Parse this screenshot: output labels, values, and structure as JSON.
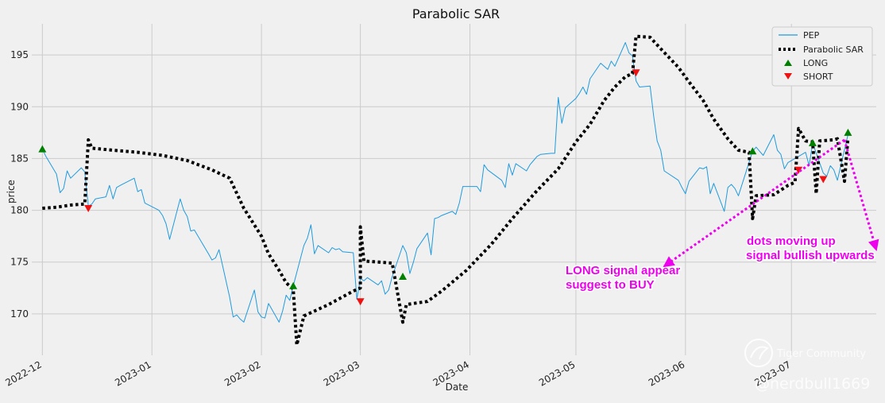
{
  "chart_data": {
    "type": "line",
    "title": "Parabolic SAR",
    "xlabel": "Date",
    "ylabel": "price",
    "ylim": [
      166,
      198
    ],
    "xlim": [
      "2022-11-28",
      "2023-07-25"
    ],
    "yticks": [
      170,
      175,
      180,
      185,
      190,
      195
    ],
    "xticks": [
      "2022-12-01",
      "2023-01-01",
      "2023-02-01",
      "2023-03-01",
      "2023-04-01",
      "2023-05-01",
      "2023-06-01",
      "2023-07-01"
    ],
    "xtick_labels": [
      "2022-12",
      "2023-01",
      "2023-02",
      "2023-03",
      "2023-04",
      "2023-05",
      "2023-06",
      "2023-07"
    ],
    "grid": true,
    "legend_position": "top-right",
    "series": [
      {
        "name": "PEP",
        "kind": "line",
        "color": "#1f9bde",
        "points": [
          [
            "2022-12-01",
            185.9
          ],
          [
            "2022-12-02",
            185.2
          ],
          [
            "2022-12-05",
            183.5
          ],
          [
            "2022-12-06",
            181.7
          ],
          [
            "2022-12-07",
            182.1
          ],
          [
            "2022-12-08",
            183.8
          ],
          [
            "2022-12-09",
            183.1
          ],
          [
            "2022-12-12",
            184.1
          ],
          [
            "2022-12-13",
            183.7
          ],
          [
            "2022-12-14",
            180.4
          ],
          [
            "2022-12-15",
            180.6
          ],
          [
            "2022-12-16",
            181.1
          ],
          [
            "2022-12-19",
            181.3
          ],
          [
            "2022-12-20",
            182.4
          ],
          [
            "2022-12-21",
            181.1
          ],
          [
            "2022-12-22",
            182.2
          ],
          [
            "2022-12-23",
            182.4
          ],
          [
            "2022-12-27",
            183.1
          ],
          [
            "2022-12-28",
            181.8
          ],
          [
            "2022-12-29",
            182.0
          ],
          [
            "2022-12-30",
            180.7
          ],
          [
            "2023-01-03",
            180.0
          ],
          [
            "2023-01-04",
            179.5
          ],
          [
            "2023-01-05",
            178.7
          ],
          [
            "2023-01-06",
            177.2
          ],
          [
            "2023-01-09",
            181.1
          ],
          [
            "2023-01-10",
            180.0
          ],
          [
            "2023-01-11",
            179.4
          ],
          [
            "2023-01-12",
            178.0
          ],
          [
            "2023-01-13",
            178.1
          ],
          [
            "2023-01-17",
            175.8
          ],
          [
            "2023-01-18",
            175.2
          ],
          [
            "2023-01-19",
            175.4
          ],
          [
            "2023-01-20",
            176.2
          ],
          [
            "2023-01-23",
            171.6
          ],
          [
            "2023-01-24",
            169.7
          ],
          [
            "2023-01-25",
            169.9
          ],
          [
            "2023-01-26",
            169.5
          ],
          [
            "2023-01-27",
            169.2
          ],
          [
            "2023-01-30",
            172.3
          ],
          [
            "2023-01-31",
            170.2
          ],
          [
            "2023-02-01",
            169.7
          ],
          [
            "2023-02-02",
            169.6
          ],
          [
            "2023-02-03",
            171.0
          ],
          [
            "2023-02-06",
            169.2
          ],
          [
            "2023-02-07",
            170.3
          ],
          [
            "2023-02-08",
            171.8
          ],
          [
            "2023-02-09",
            171.3
          ],
          [
            "2023-02-10",
            172.7
          ],
          [
            "2023-02-13",
            176.6
          ],
          [
            "2023-02-14",
            177.3
          ],
          [
            "2023-02-15",
            178.6
          ],
          [
            "2023-02-16",
            175.8
          ],
          [
            "2023-02-17",
            176.6
          ],
          [
            "2023-02-20",
            175.9
          ],
          [
            "2023-02-21",
            176.4
          ],
          [
            "2023-02-22",
            176.2
          ],
          [
            "2023-02-23",
            176.3
          ],
          [
            "2023-02-24",
            176.0
          ],
          [
            "2023-02-27",
            175.9
          ],
          [
            "2023-02-28",
            171.4
          ],
          [
            "2023-03-01",
            173.4
          ],
          [
            "2023-03-02",
            173.2
          ],
          [
            "2023-03-03",
            173.5
          ],
          [
            "2023-03-06",
            172.8
          ],
          [
            "2023-03-07",
            173.2
          ],
          [
            "2023-03-08",
            171.9
          ],
          [
            "2023-03-09",
            172.3
          ],
          [
            "2023-03-10",
            173.6
          ],
          [
            "2023-03-13",
            176.6
          ],
          [
            "2023-03-14",
            175.9
          ],
          [
            "2023-03-15",
            173.9
          ],
          [
            "2023-03-16",
            175.0
          ],
          [
            "2023-03-17",
            176.3
          ],
          [
            "2023-03-20",
            177.8
          ],
          [
            "2023-03-21",
            175.7
          ],
          [
            "2023-03-22",
            179.2
          ],
          [
            "2023-03-23",
            179.3
          ],
          [
            "2023-03-24",
            179.5
          ],
          [
            "2023-03-27",
            179.9
          ],
          [
            "2023-03-28",
            179.6
          ],
          [
            "2023-03-29",
            180.7
          ],
          [
            "2023-03-30",
            182.3
          ],
          [
            "2023-03-31",
            182.3
          ],
          [
            "2023-04-03",
            182.3
          ],
          [
            "2023-04-04",
            181.8
          ],
          [
            "2023-04-05",
            184.4
          ],
          [
            "2023-04-06",
            183.9
          ],
          [
            "2023-04-10",
            182.9
          ],
          [
            "2023-04-11",
            182.2
          ],
          [
            "2023-04-12",
            184.5
          ],
          [
            "2023-04-13",
            183.4
          ],
          [
            "2023-04-14",
            184.5
          ],
          [
            "2023-04-17",
            183.8
          ],
          [
            "2023-04-18",
            184.4
          ],
          [
            "2023-04-19",
            184.8
          ],
          [
            "2023-04-20",
            185.2
          ],
          [
            "2023-04-21",
            185.4
          ],
          [
            "2023-04-24",
            185.5
          ],
          [
            "2023-04-25",
            185.5
          ],
          [
            "2023-04-26",
            190.9
          ],
          [
            "2023-04-27",
            188.4
          ],
          [
            "2023-04-28",
            189.9
          ],
          [
            "2023-05-01",
            190.8
          ],
          [
            "2023-05-02",
            191.3
          ],
          [
            "2023-05-03",
            191.9
          ],
          [
            "2023-05-04",
            191.2
          ],
          [
            "2023-05-05",
            192.7
          ],
          [
            "2023-05-08",
            194.2
          ],
          [
            "2023-05-09",
            193.9
          ],
          [
            "2023-05-10",
            193.6
          ],
          [
            "2023-05-11",
            194.4
          ],
          [
            "2023-05-12",
            193.9
          ],
          [
            "2023-05-15",
            196.2
          ],
          [
            "2023-05-16",
            195.2
          ],
          [
            "2023-05-17",
            194.9
          ],
          [
            "2023-05-18",
            192.5
          ],
          [
            "2023-05-19",
            191.9
          ],
          [
            "2023-05-22",
            192.0
          ],
          [
            "2023-05-23",
            189.1
          ],
          [
            "2023-05-24",
            186.7
          ],
          [
            "2023-05-25",
            185.8
          ],
          [
            "2023-05-26",
            183.8
          ],
          [
            "2023-05-30",
            182.9
          ],
          [
            "2023-05-31",
            182.2
          ],
          [
            "2023-06-01",
            181.6
          ],
          [
            "2023-06-02",
            182.8
          ],
          [
            "2023-06-05",
            184.1
          ],
          [
            "2023-06-06",
            184.0
          ],
          [
            "2023-06-07",
            184.2
          ],
          [
            "2023-06-08",
            181.6
          ],
          [
            "2023-06-09",
            182.6
          ],
          [
            "2023-06-12",
            179.9
          ],
          [
            "2023-06-13",
            182.2
          ],
          [
            "2023-06-14",
            182.5
          ],
          [
            "2023-06-15",
            182.1
          ],
          [
            "2023-06-16",
            181.4
          ],
          [
            "2023-06-20",
            185.7
          ],
          [
            "2023-06-21",
            186.1
          ],
          [
            "2023-06-22",
            185.7
          ],
          [
            "2023-06-23",
            185.3
          ],
          [
            "2023-06-26",
            187.3
          ],
          [
            "2023-06-27",
            185.8
          ],
          [
            "2023-06-28",
            185.4
          ],
          [
            "2023-06-29",
            184.0
          ],
          [
            "2023-06-30",
            184.6
          ],
          [
            "2023-07-03",
            185.2
          ],
          [
            "2023-07-05",
            185.6
          ],
          [
            "2023-07-06",
            184.3
          ],
          [
            "2023-07-07",
            186.5
          ],
          [
            "2023-07-10",
            183.6
          ],
          [
            "2023-07-11",
            183.3
          ],
          [
            "2023-07-12",
            184.3
          ],
          [
            "2023-07-13",
            183.9
          ],
          [
            "2023-07-14",
            182.9
          ],
          [
            "2023-07-17",
            187.3
          ]
        ]
      },
      {
        "name": "Parabolic SAR",
        "kind": "dotted",
        "color": "#000000",
        "points": [
          [
            "2022-12-01",
            180.2
          ],
          [
            "2022-12-05",
            180.3
          ],
          [
            "2022-12-09",
            180.5
          ],
          [
            "2022-12-13",
            180.6
          ],
          [
            "2022-12-14",
            186.8
          ],
          [
            "2022-12-15",
            186.0
          ],
          [
            "2022-12-21",
            185.8
          ],
          [
            "2022-12-28",
            185.6
          ],
          [
            "2023-01-04",
            185.3
          ],
          [
            "2023-01-11",
            184.8
          ],
          [
            "2023-01-18",
            183.9
          ],
          [
            "2023-01-23",
            183.1
          ],
          [
            "2023-01-27",
            180.2
          ],
          [
            "2023-02-01",
            177.5
          ],
          [
            "2023-02-03",
            175.8
          ],
          [
            "2023-02-06",
            174.2
          ],
          [
            "2023-02-08",
            173.0
          ],
          [
            "2023-02-10",
            172.4
          ],
          [
            "2023-02-11",
            167.0
          ],
          [
            "2023-02-13",
            169.8
          ],
          [
            "2023-02-20",
            170.9
          ],
          [
            "2023-02-27",
            172.2
          ],
          [
            "2023-03-01",
            172.5
          ],
          [
            "2023-03-01",
            178.4
          ],
          [
            "2023-03-02",
            175.1
          ],
          [
            "2023-03-10",
            174.9
          ],
          [
            "2023-03-13",
            169.2
          ],
          [
            "2023-03-14",
            170.9
          ],
          [
            "2023-03-20",
            171.2
          ],
          [
            "2023-03-24",
            172.2
          ],
          [
            "2023-03-31",
            174.2
          ],
          [
            "2023-04-07",
            176.7
          ],
          [
            "2023-04-13",
            179.2
          ],
          [
            "2023-04-20",
            181.9
          ],
          [
            "2023-04-26",
            184.0
          ],
          [
            "2023-05-01",
            186.6
          ],
          [
            "2023-05-05",
            188.3
          ],
          [
            "2023-05-09",
            190.6
          ],
          [
            "2023-05-12",
            191.9
          ],
          [
            "2023-05-15",
            192.9
          ],
          [
            "2023-05-17",
            193.2
          ],
          [
            "2023-05-18",
            196.8
          ],
          [
            "2023-05-22",
            196.7
          ],
          [
            "2023-05-25",
            195.6
          ],
          [
            "2023-05-30",
            193.8
          ],
          [
            "2023-06-02",
            192.4
          ],
          [
            "2023-06-06",
            190.6
          ],
          [
            "2023-06-09",
            188.8
          ],
          [
            "2023-06-13",
            186.9
          ],
          [
            "2023-06-16",
            185.8
          ],
          [
            "2023-06-19",
            185.6
          ],
          [
            "2023-06-20",
            179.2
          ],
          [
            "2023-06-21",
            181.4
          ],
          [
            "2023-06-26",
            181.5
          ],
          [
            "2023-06-30",
            182.4
          ],
          [
            "2023-07-02",
            182.7
          ],
          [
            "2023-07-03",
            187.9
          ],
          [
            "2023-07-05",
            186.7
          ],
          [
            "2023-07-07",
            186.6
          ],
          [
            "2023-07-08",
            181.6
          ],
          [
            "2023-07-09",
            186.7
          ],
          [
            "2023-07-13",
            186.8
          ],
          [
            "2023-07-14",
            186.9
          ],
          [
            "2023-07-16",
            182.8
          ],
          [
            "2023-07-17",
            187.0
          ]
        ]
      },
      {
        "name": "LONG",
        "kind": "marker-up",
        "color": "#008000",
        "points": [
          [
            "2022-12-01",
            185.9
          ],
          [
            "2023-02-10",
            172.7
          ],
          [
            "2023-03-13",
            173.6
          ],
          [
            "2023-06-20",
            185.7
          ],
          [
            "2023-07-07",
            186.5
          ],
          [
            "2023-07-17",
            187.5
          ]
        ]
      },
      {
        "name": "SHORT",
        "kind": "marker-down",
        "color": "#ee1111",
        "points": [
          [
            "2022-12-14",
            180.2
          ],
          [
            "2023-03-01",
            171.2
          ],
          [
            "2023-05-18",
            193.3
          ],
          [
            "2023-07-03",
            183.9
          ],
          [
            "2023-07-10",
            183.0
          ]
        ]
      }
    ],
    "annotations": [
      {
        "text": [
          "LONG signal appear",
          "suggest to BUY"
        ],
        "color": "#ee00ee",
        "arrow_to": [
          "2023-05-26",
          174.6
        ],
        "arrow_from": [
          "2023-07-16",
          186.8
        ]
      },
      {
        "text": [
          "dots moving up",
          "signal bullish upwards"
        ],
        "color": "#ee00ee",
        "arrow_to": [
          "2023-07-25",
          176.2
        ],
        "arrow_from": [
          "2023-07-16",
          186.8
        ]
      }
    ]
  },
  "watermark": {
    "brand": "Tiger Community",
    "handle": "@nerdbull1669"
  }
}
